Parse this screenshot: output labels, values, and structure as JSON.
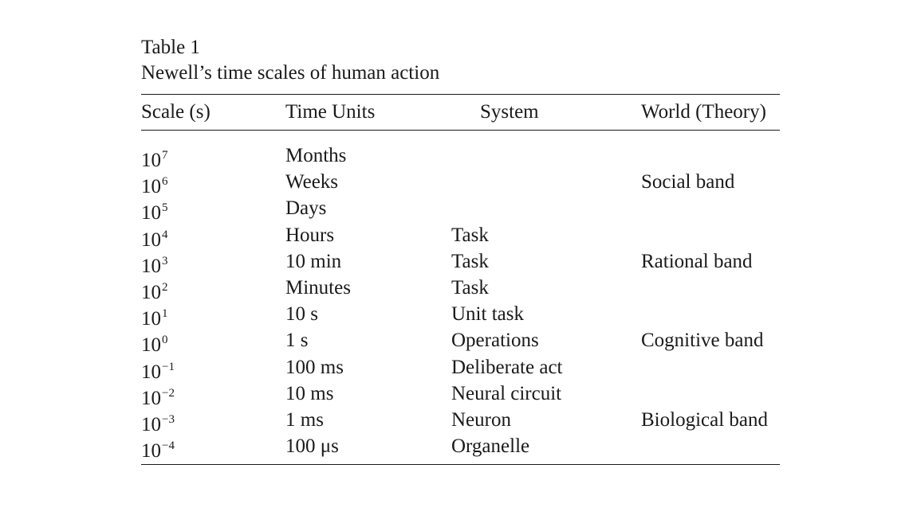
{
  "caption": {
    "label": "Table 1",
    "title": "Newell’s time scales of human action"
  },
  "columns": {
    "scale": "Scale (s)",
    "time_units": "Time Units",
    "system": "System",
    "world": "World (Theory)"
  },
  "rows": [
    {
      "base": "10",
      "exp": "7",
      "time": "Months",
      "system": "",
      "world": ""
    },
    {
      "base": "10",
      "exp": "6",
      "time": "Weeks",
      "system": "",
      "world": "Social band"
    },
    {
      "base": "10",
      "exp": "5",
      "time": "Days",
      "system": "",
      "world": ""
    },
    {
      "base": "10",
      "exp": "4",
      "time": "Hours",
      "system": "Task",
      "world": ""
    },
    {
      "base": "10",
      "exp": "3",
      "time": "10 min",
      "system": "Task",
      "world": "Rational band"
    },
    {
      "base": "10",
      "exp": "2",
      "time": "Minutes",
      "system": "Task",
      "world": ""
    },
    {
      "base": "10",
      "exp": "1",
      "time": "10 s",
      "system": "Unit task",
      "world": ""
    },
    {
      "base": "10",
      "exp": "0",
      "time": "1 s",
      "system": "Operations",
      "world": "Cognitive band"
    },
    {
      "base": "10",
      "exp": "−1",
      "time": "100 ms",
      "system": "Deliberate act",
      "world": ""
    },
    {
      "base": "10",
      "exp": "−2",
      "time": "10 ms",
      "system": "Neural circuit",
      "world": ""
    },
    {
      "base": "10",
      "exp": "−3",
      "time": "1 ms",
      "system": "Neuron",
      "world": "Biological band"
    },
    {
      "base": "10",
      "exp": "−4",
      "time": "100 μs",
      "system": "Organelle",
      "world": ""
    }
  ]
}
